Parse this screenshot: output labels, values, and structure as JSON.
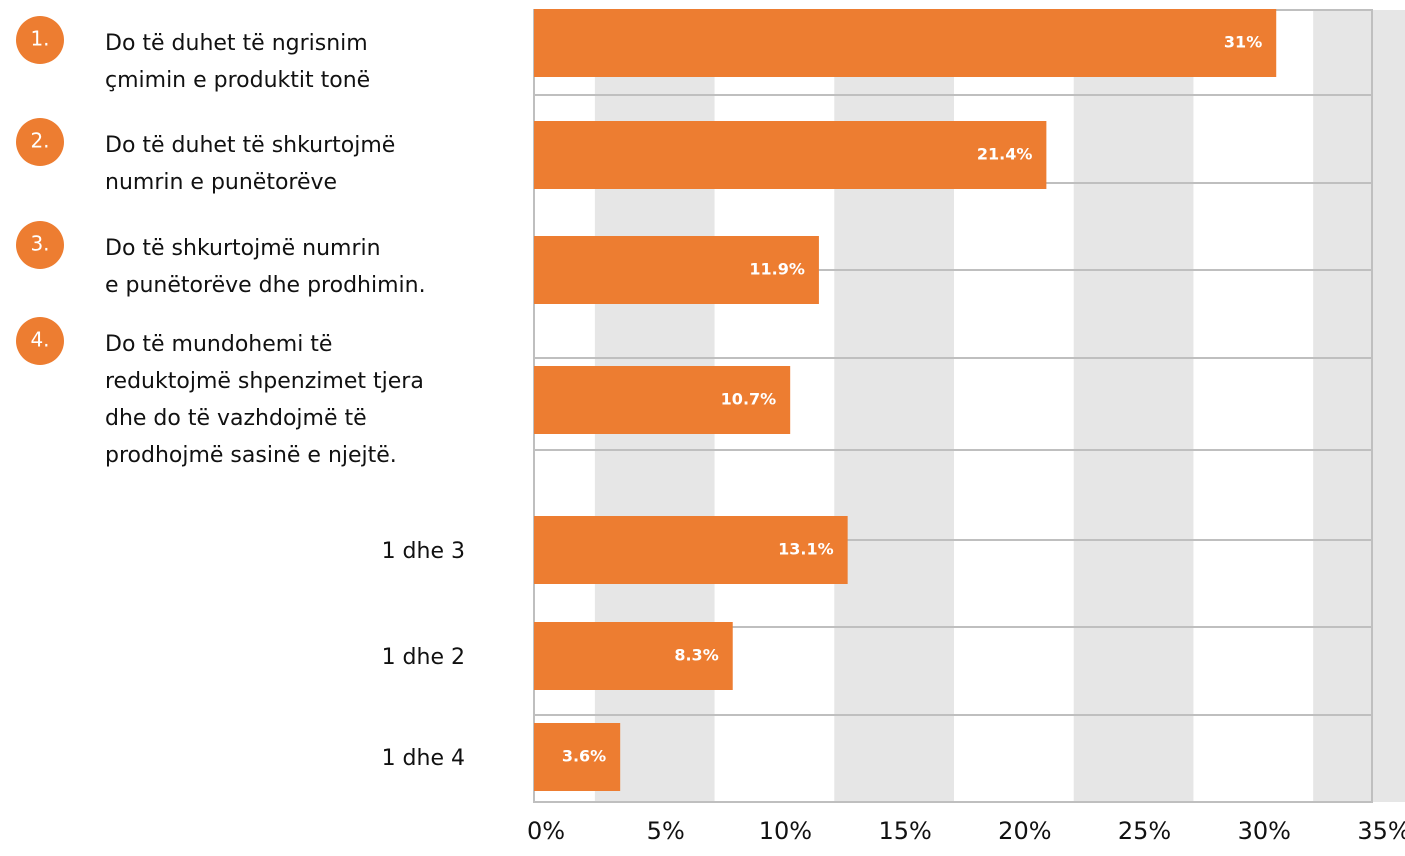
{
  "chart_data": {
    "type": "barh",
    "categories": [
      "Do të duhet të ngrisnim\nçmimin e produktit tonë",
      "Do të duhet të shkurtojmë\nnumrin e punëtorëve",
      "Do të shkurtojmë numrin\ne punëtorëve dhe prodhimin.",
      "Do të mundohemi të\nreduktojmë shpenzimet tjera\ndhe do të vazhdojmë të\nprodhojmë sasinë e njejtë.",
      "1 dhe 3",
      "1 dhe 2",
      "1 dhe 4"
    ],
    "category_markers": [
      "1.",
      "2.",
      "3.",
      "4.",
      null,
      null,
      null
    ],
    "values": [
      31,
      21.4,
      11.9,
      10.7,
      13.1,
      8.3,
      3.6
    ],
    "value_labels": [
      "31%",
      "21.4%",
      "11.9%",
      "10.7%",
      "13.1%",
      "8.3%",
      "3.6%"
    ],
    "color": "#ed7d31",
    "xlim": [
      0,
      35
    ],
    "xticks": [
      {
        "value": 0,
        "label": "0%"
      },
      {
        "value": 5,
        "label": "5%"
      },
      {
        "value": 10,
        "label": "10%"
      },
      {
        "value": 15,
        "label": "15%"
      },
      {
        "value": 20,
        "label": "20%"
      },
      {
        "value": 25,
        "label": "25%"
      },
      {
        "value": 30,
        "label": "30%"
      },
      {
        "value": 35,
        "label": "35%"
      }
    ]
  }
}
